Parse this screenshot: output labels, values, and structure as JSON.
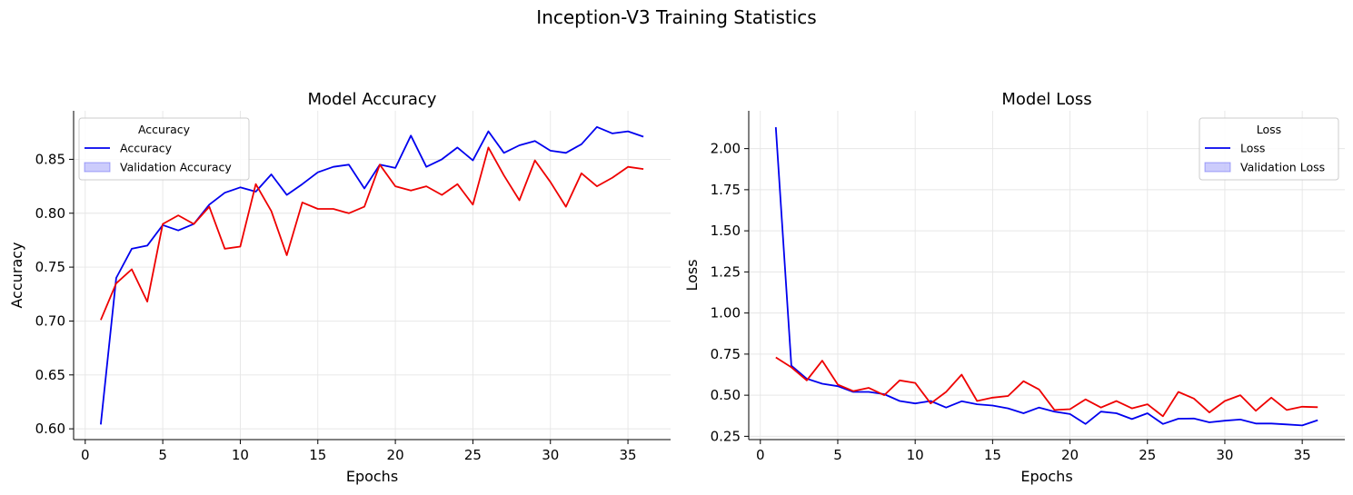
{
  "figure": {
    "title": "Inception-V3 Training Statistics"
  },
  "chart_data": [
    {
      "type": "line",
      "title": "Model Accuracy",
      "xlabel": "Epochs",
      "ylabel": "Accuracy",
      "xlim": [
        -0.75,
        37.75
      ],
      "ylim": [
        0.59,
        0.895
      ],
      "xticks": [
        0,
        5,
        10,
        15,
        20,
        25,
        30,
        35
      ],
      "yticks": [
        0.6,
        0.65,
        0.7,
        0.75,
        0.8,
        0.85
      ],
      "ytick_labels": [
        "0.60",
        "0.65",
        "0.70",
        "0.75",
        "0.80",
        "0.85"
      ],
      "grid": true,
      "legend": {
        "title": "Accuracy",
        "position": "upper left",
        "entries": [
          "Accuracy",
          "Validation Accuracy"
        ]
      },
      "x": [
        1,
        2,
        3,
        4,
        5,
        6,
        7,
        8,
        9,
        10,
        11,
        12,
        13,
        14,
        15,
        16,
        17,
        18,
        19,
        20,
        21,
        22,
        23,
        24,
        25,
        26,
        27,
        28,
        29,
        30,
        31,
        32,
        33,
        34,
        35,
        36
      ],
      "series": [
        {
          "name": "Accuracy",
          "color": "#0000ee",
          "style": "line",
          "values": [
            0.604,
            0.74,
            0.767,
            0.77,
            0.789,
            0.784,
            0.79,
            0.808,
            0.819,
            0.824,
            0.82,
            0.836,
            0.817,
            0.827,
            0.838,
            0.843,
            0.845,
            0.823,
            0.845,
            0.842,
            0.872,
            0.843,
            0.85,
            0.861,
            0.849,
            0.876,
            0.856,
            0.863,
            0.867,
            0.858,
            0.856,
            0.864,
            0.88,
            0.874,
            0.876,
            0.871
          ]
        },
        {
          "name": "Validation Accuracy",
          "color": "#ee0000",
          "style": "line",
          "values": [
            0.701,
            0.735,
            0.748,
            0.718,
            0.79,
            0.798,
            0.79,
            0.806,
            0.767,
            0.769,
            0.827,
            0.802,
            0.761,
            0.81,
            0.804,
            0.804,
            0.8,
            0.806,
            0.845,
            0.825,
            0.821,
            0.825,
            0.817,
            0.827,
            0.808,
            0.861,
            0.835,
            0.812,
            0.849,
            0.829,
            0.806,
            0.837,
            0.825,
            0.833,
            0.843,
            0.841
          ]
        }
      ]
    },
    {
      "type": "line",
      "title": "Model Loss",
      "xlabel": "Epochs",
      "ylabel": "Loss",
      "xlim": [
        -0.75,
        37.75
      ],
      "ylim": [
        0.23,
        2.23
      ],
      "xticks": [
        0,
        5,
        10,
        15,
        20,
        25,
        30,
        35
      ],
      "yticks": [
        0.25,
        0.5,
        0.75,
        1.0,
        1.25,
        1.5,
        1.75,
        2.0
      ],
      "ytick_labels": [
        "0.25",
        "0.50",
        "0.75",
        "1.00",
        "1.25",
        "1.50",
        "1.75",
        "2.00"
      ],
      "grid": true,
      "legend": {
        "title": "Loss",
        "position": "upper right",
        "entries": [
          "Loss",
          "Validation Loss"
        ]
      },
      "x": [
        1,
        2,
        3,
        4,
        5,
        6,
        7,
        8,
        9,
        10,
        11,
        12,
        13,
        14,
        15,
        16,
        17,
        18,
        19,
        20,
        21,
        22,
        23,
        24,
        25,
        26,
        27,
        28,
        29,
        30,
        31,
        32,
        33,
        34,
        35,
        36
      ],
      "series": [
        {
          "name": "Loss",
          "color": "#0000ee",
          "style": "line",
          "values": [
            2.13,
            0.68,
            0.6,
            0.57,
            0.555,
            0.52,
            0.52,
            0.506,
            0.465,
            0.45,
            0.465,
            0.425,
            0.463,
            0.445,
            0.437,
            0.42,
            0.39,
            0.425,
            0.4,
            0.385,
            0.325,
            0.4,
            0.39,
            0.355,
            0.39,
            0.325,
            0.357,
            0.358,
            0.335,
            0.345,
            0.352,
            0.328,
            0.328,
            0.322,
            0.316,
            0.348
          ]
        },
        {
          "name": "Validation Loss",
          "color": "#ee0000",
          "style": "line",
          "values": [
            0.73,
            0.67,
            0.59,
            0.71,
            0.565,
            0.525,
            0.545,
            0.5,
            0.59,
            0.575,
            0.45,
            0.52,
            0.625,
            0.465,
            0.485,
            0.495,
            0.585,
            0.535,
            0.41,
            0.415,
            0.475,
            0.425,
            0.465,
            0.42,
            0.445,
            0.372,
            0.52,
            0.48,
            0.395,
            0.465,
            0.5,
            0.405,
            0.485,
            0.41,
            0.43,
            0.427
          ]
        }
      ]
    }
  ]
}
